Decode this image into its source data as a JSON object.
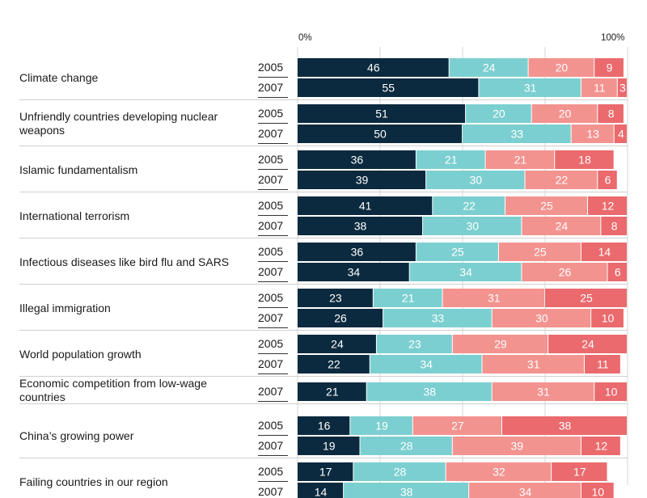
{
  "chart_data": {
    "type": "bar",
    "stacked": true,
    "orientation": "horizontal",
    "xlim": [
      0,
      100
    ],
    "axis": {
      "min_label": "0%",
      "max_label": "100%"
    },
    "segment_colors": [
      "#0b2a3f",
      "#7ccfd0",
      "#f3938f",
      "#ea6a6d"
    ],
    "groups": [
      {
        "category": "Climate change",
        "rows": [
          {
            "year": "2005",
            "values": [
              46,
              24,
              20,
              9
            ]
          },
          {
            "year": "2007",
            "values": [
              55,
              31,
              11,
              3
            ]
          }
        ]
      },
      {
        "category": "Unfriendly countries developing nuclear weapons",
        "rows": [
          {
            "year": "2005",
            "values": [
              51,
              20,
              20,
              8
            ]
          },
          {
            "year": "2007",
            "values": [
              50,
              33,
              13,
              4
            ]
          }
        ]
      },
      {
        "category": "Islamic fundamentalism",
        "rows": [
          {
            "year": "2005",
            "values": [
              36,
              21,
              21,
              18
            ]
          },
          {
            "year": "2007",
            "values": [
              39,
              30,
              22,
              6
            ]
          }
        ]
      },
      {
        "category": "International terrorism",
        "rows": [
          {
            "year": "2005",
            "values": [
              41,
              22,
              25,
              12
            ]
          },
          {
            "year": "2007",
            "values": [
              38,
              30,
              24,
              8
            ]
          }
        ]
      },
      {
        "category": "Infectious diseases like bird flu and SARS",
        "rows": [
          {
            "year": "2005",
            "values": [
              36,
              25,
              25,
              14
            ]
          },
          {
            "year": "2007",
            "values": [
              34,
              34,
              26,
              6
            ]
          }
        ]
      },
      {
        "category": "Illegal immigration",
        "rows": [
          {
            "year": "2005",
            "values": [
              23,
              21,
              31,
              25
            ]
          },
          {
            "year": "2007",
            "values": [
              26,
              33,
              30,
              10
            ]
          }
        ]
      },
      {
        "category": "World population growth",
        "rows": [
          {
            "year": "2005",
            "values": [
              24,
              23,
              29,
              24
            ]
          },
          {
            "year": "2007",
            "values": [
              22,
              34,
              31,
              11
            ]
          }
        ]
      },
      {
        "category": "Economic competition from low-wage countries",
        "rows": [
          {
            "year": "2007",
            "values": [
              21,
              38,
              31,
              10
            ]
          }
        ]
      },
      {
        "category": "China’s growing power",
        "rows": [
          {
            "year": "2005",
            "values": [
              16,
              19,
              27,
              38
            ]
          },
          {
            "year": "2007",
            "values": [
              19,
              28,
              39,
              12
            ]
          }
        ]
      },
      {
        "category": "Failing countries in our region",
        "rows": [
          {
            "year": "2005",
            "values": [
              17,
              28,
              32,
              17
            ]
          },
          {
            "year": "2007",
            "values": [
              14,
              38,
              34,
              10
            ]
          }
        ]
      }
    ]
  }
}
